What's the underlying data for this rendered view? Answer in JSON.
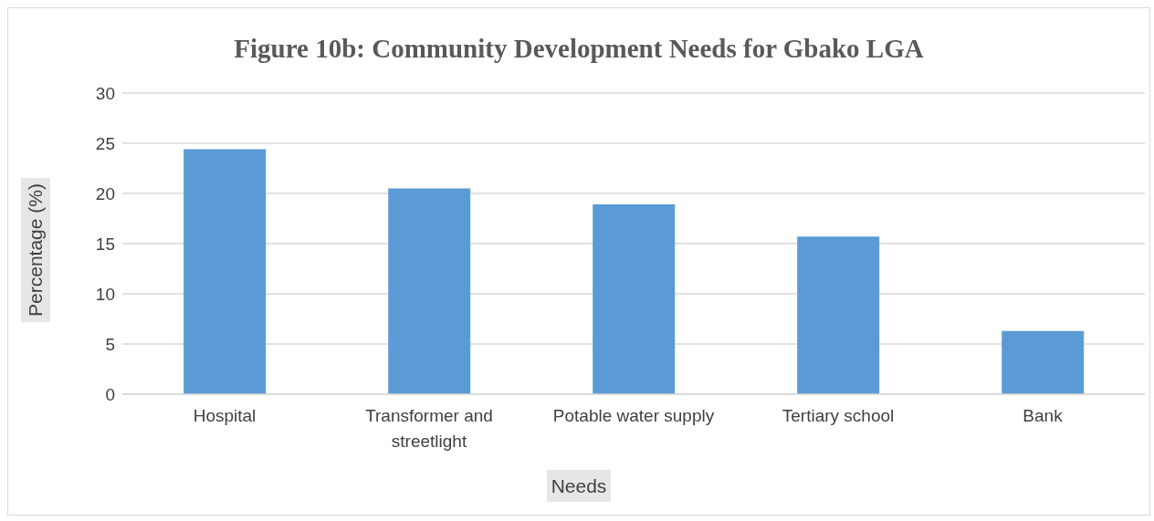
{
  "chart_data": {
    "type": "bar",
    "title": "Figure 10b: Community Development Needs for Gbako LGA",
    "xlabel": "Needs",
    "ylabel": "Percentage (%)",
    "categories": [
      "Hospital",
      "Transformer and streetlight",
      "Potable water supply",
      "Tertiary school",
      "Bank"
    ],
    "values": [
      24.4,
      20.5,
      18.9,
      15.7,
      6.3
    ],
    "color": "#5b9bd5",
    "ylim": [
      0,
      30
    ],
    "yticks": [
      0,
      5,
      10,
      15,
      20,
      25,
      30
    ],
    "grid": "y",
    "legend": false
  }
}
